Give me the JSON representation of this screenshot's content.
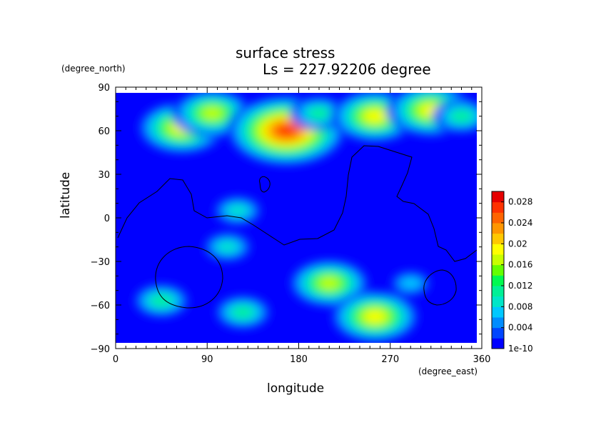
{
  "chart_data": {
    "type": "heatmap",
    "title": "surface stress",
    "subtitle": "Ls = 227.92206 degree",
    "xlabel": "longitude",
    "ylabel": "latitude",
    "xunit": "(degree_east)",
    "yunit": "(degree_north)",
    "xlim": [
      0,
      360
    ],
    "ylim": [
      -90,
      90
    ],
    "xticks": [
      "0",
      "90",
      "180",
      "270",
      "360"
    ],
    "yticks": [
      "90",
      "60",
      "30",
      "0",
      "−30",
      "−60",
      "−90"
    ],
    "colorbar": {
      "labels": [
        "0.028",
        "0.024",
        "0.02",
        "0.016",
        "0.012",
        "0.008",
        "0.004",
        "1e-10"
      ],
      "min": 0,
      "max": 0.03,
      "colors": [
        "#0000ff",
        "#0046ff",
        "#008cff",
        "#00c8ff",
        "#00e6c8",
        "#00f096",
        "#00fa50",
        "#64ff00",
        "#c8ff00",
        "#ffff00",
        "#ffc800",
        "#ff9600",
        "#ff6400",
        "#ff3200",
        "#e60000"
      ]
    },
    "hotspots": [
      {
        "lon": 65,
        "lat": 62,
        "value": 0.02
      },
      {
        "lon": 95,
        "lat": 72,
        "value": 0.018
      },
      {
        "lon": 168,
        "lat": 60,
        "value": 0.028
      },
      {
        "lon": 200,
        "lat": 72,
        "value": 0.011
      },
      {
        "lon": 255,
        "lat": 70,
        "value": 0.019
      },
      {
        "lon": 310,
        "lat": 74,
        "value": 0.02
      },
      {
        "lon": 340,
        "lat": 70,
        "value": 0.011
      },
      {
        "lon": 120,
        "lat": 5,
        "value": 0.01
      },
      {
        "lon": 110,
        "lat": -20,
        "value": 0.009
      },
      {
        "lon": 210,
        "lat": -45,
        "value": 0.018
      },
      {
        "lon": 255,
        "lat": -68,
        "value": 0.019
      },
      {
        "lon": 45,
        "lat": -57,
        "value": 0.011
      },
      {
        "lon": 125,
        "lat": -65,
        "value": 0.011
      },
      {
        "lon": 290,
        "lat": -45,
        "value": 0.008
      }
    ]
  }
}
